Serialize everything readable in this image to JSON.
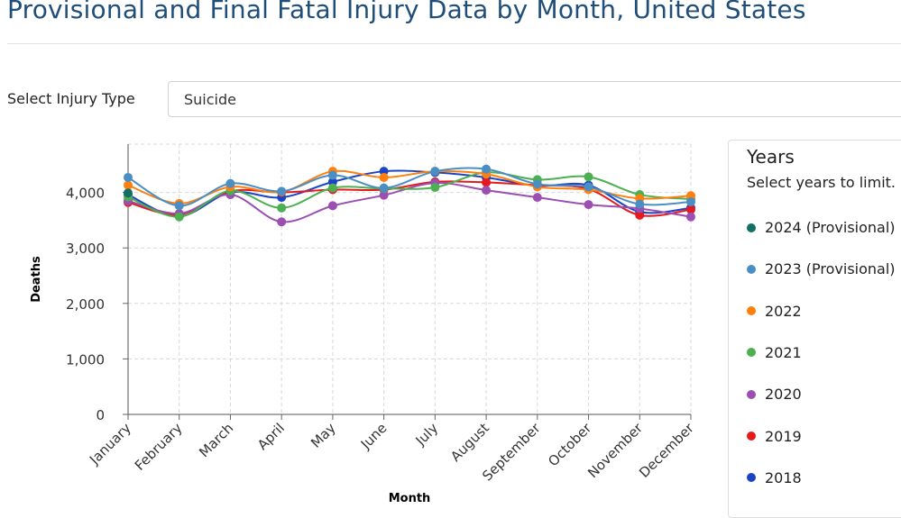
{
  "header": {
    "title": "Provisional and Final Fatal Injury Data by Month, United States"
  },
  "filter": {
    "label": "Select Injury Type",
    "value": "Suicide"
  },
  "legend": {
    "title": "Years",
    "subtitle": "Select years to limit."
  },
  "chart_data": {
    "type": "line",
    "x_label": "Month",
    "y_label": "Deaths",
    "categories": [
      "January",
      "February",
      "March",
      "April",
      "May",
      "June",
      "July",
      "August",
      "September",
      "October",
      "November",
      "December"
    ],
    "ylim": [
      0,
      4870
    ],
    "yticks": [
      0,
      {
        "value": 1000,
        "label": "1,000"
      },
      {
        "value": 2000,
        "label": "2,000"
      },
      {
        "value": 3000,
        "label": "3,000"
      },
      {
        "value": 4000,
        "label": "4,000"
      }
    ],
    "grid": true,
    "series": [
      {
        "name": "2024 (Provisional)",
        "color": "#136f63",
        "values": [
          3990,
          null,
          null,
          null,
          null,
          null,
          null,
          null,
          null,
          null,
          null,
          null
        ]
      },
      {
        "name": "2023 (Provisional)",
        "color": "#4a8ec4",
        "values": [
          4270,
          3760,
          4160,
          4020,
          4310,
          4080,
          4380,
          4420,
          4150,
          4100,
          3790,
          3830
        ]
      },
      {
        "name": "2022",
        "color": "#ff7f0e",
        "values": [
          4130,
          3800,
          4100,
          4010,
          4380,
          4270,
          4380,
          4330,
          4100,
          4050,
          3890,
          3940
        ]
      },
      {
        "name": "2021",
        "color": "#4caf50",
        "values": [
          3920,
          3560,
          4030,
          3720,
          4080,
          4070,
          4090,
          4360,
          4230,
          4280,
          3960,
          3880
        ]
      },
      {
        "name": "2020",
        "color": "#9b4fb0",
        "values": [
          3850,
          3620,
          3960,
          3470,
          3760,
          3950,
          4170,
          4040,
          3910,
          3780,
          3710,
          3560
        ]
      },
      {
        "name": "2019",
        "color": "#e41a1c",
        "values": [
          3820,
          3600,
          4020,
          4000,
          4050,
          4050,
          4190,
          4180,
          4130,
          4060,
          3590,
          3690
        ]
      },
      {
        "name": "2018",
        "color": "#1a44c7",
        "values": [
          3960,
          3570,
          4000,
          3910,
          4190,
          4380,
          4360,
          4270,
          4120,
          4130,
          3650,
          3720
        ]
      }
    ]
  }
}
